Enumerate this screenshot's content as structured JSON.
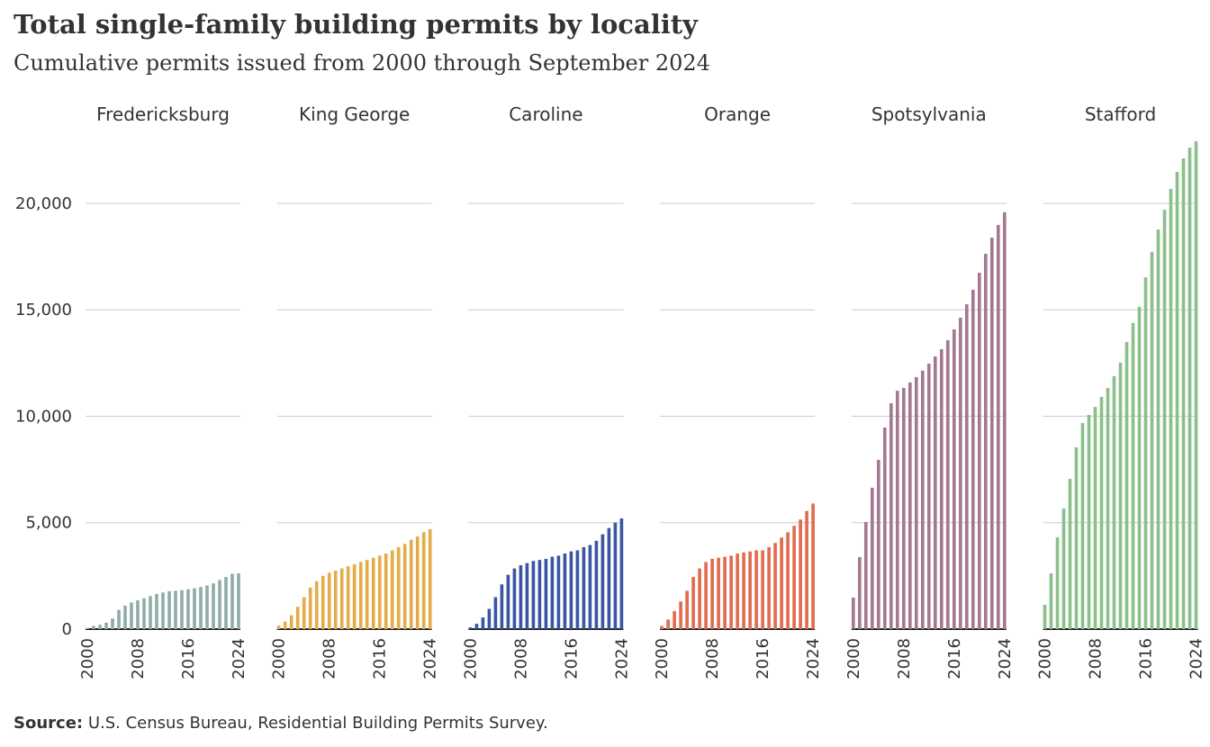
{
  "title": "Total single-family building permits by locality",
  "subtitle": "Cumulative permits issued from 2000 through September 2024",
  "source_label": "Source:",
  "source": "U.S. Census Bureau, Residential Building Permits Survey.",
  "chart_data": [
    {
      "type": "bar",
      "title": "Fredericksburg",
      "color": "#8fada8",
      "x": [
        2000,
        null,
        null,
        null,
        null,
        null,
        null,
        null,
        2008,
        null,
        null,
        null,
        null,
        null,
        null,
        null,
        2016,
        null,
        null,
        null,
        null,
        null,
        null,
        null,
        2024
      ],
      "values": [
        50,
        150,
        200,
        300,
        500,
        900,
        1100,
        1250,
        1350,
        1450,
        1550,
        1650,
        1720,
        1780,
        1800,
        1830,
        1870,
        1920,
        1980,
        2050,
        2150,
        2300,
        2450,
        2600,
        2620
      ],
      "ylim": [
        0,
        23000
      ],
      "yticks": [
        0,
        {
          "value": 5000,
          "label": "5,000"
        },
        {
          "value": 10000,
          "label": "10,000"
        },
        {
          "value": 15000,
          "label": "15,000"
        },
        {
          "value": 20000,
          "label": "20,000"
        }
      ],
      "grid": true
    },
    {
      "type": "bar",
      "title": "King George",
      "color": "#e4ac48",
      "x": [
        2000,
        null,
        null,
        null,
        null,
        null,
        null,
        null,
        2008,
        null,
        null,
        null,
        null,
        null,
        null,
        null,
        2016,
        null,
        null,
        null,
        null,
        null,
        null,
        null,
        2024
      ],
      "values": [
        170,
        350,
        650,
        1050,
        1500,
        1950,
        2250,
        2500,
        2650,
        2750,
        2850,
        2950,
        3050,
        3150,
        3250,
        3350,
        3450,
        3550,
        3700,
        3850,
        4000,
        4200,
        4350,
        4550,
        4700
      ]
    },
    {
      "type": "bar",
      "title": "Caroline",
      "color": "#3a56a2",
      "x": [
        2000,
        null,
        null,
        null,
        null,
        null,
        null,
        null,
        2008,
        null,
        null,
        null,
        null,
        null,
        null,
        null,
        2016,
        null,
        null,
        null,
        null,
        null,
        null,
        null,
        2024
      ],
      "values": [
        80,
        250,
        550,
        950,
        1500,
        2100,
        2550,
        2850,
        3000,
        3100,
        3200,
        3250,
        3300,
        3400,
        3450,
        3550,
        3650,
        3700,
        3850,
        3950,
        4150,
        4450,
        4750,
        5000,
        5200
      ]
    },
    {
      "type": "bar",
      "title": "Orange",
      "color": "#e26b4e",
      "x": [
        2000,
        null,
        null,
        null,
        null,
        null,
        null,
        null,
        2008,
        null,
        null,
        null,
        null,
        null,
        null,
        null,
        2016,
        null,
        null,
        null,
        null,
        null,
        null,
        null,
        2024
      ],
      "values": [
        150,
        450,
        850,
        1300,
        1800,
        2450,
        2850,
        3150,
        3300,
        3350,
        3400,
        3450,
        3550,
        3600,
        3650,
        3700,
        3700,
        3850,
        4050,
        4300,
        4550,
        4850,
        5150,
        5550,
        5900
      ]
    },
    {
      "type": "bar",
      "title": "Spotsylvania",
      "color": "#a47890",
      "x": [
        2000,
        null,
        null,
        null,
        null,
        null,
        null,
        null,
        2008,
        null,
        null,
        null,
        null,
        null,
        null,
        null,
        2016,
        null,
        null,
        null,
        null,
        null,
        null,
        null,
        2024
      ],
      "values": [
        1480,
        3380,
        5030,
        6640,
        7950,
        9470,
        10610,
        11200,
        11330,
        11590,
        11840,
        12140,
        12470,
        12810,
        13150,
        13570,
        14080,
        14630,
        15260,
        15940,
        16740,
        17630,
        18390,
        18990,
        19580
      ]
    },
    {
      "type": "bar",
      "title": "Stafford",
      "color": "#8bc08a",
      "x": [
        2000,
        null,
        null,
        null,
        null,
        null,
        null,
        null,
        2008,
        null,
        null,
        null,
        null,
        null,
        null,
        null,
        2016,
        null,
        null,
        null,
        null,
        null,
        null,
        null,
        2024
      ],
      "values": [
        1140,
        2620,
        4310,
        5670,
        7060,
        8540,
        9680,
        10060,
        10440,
        10910,
        11330,
        11880,
        12520,
        13490,
        14380,
        15140,
        16530,
        17720,
        18770,
        19700,
        20680,
        21480,
        22110,
        22620,
        22920
      ]
    }
  ]
}
